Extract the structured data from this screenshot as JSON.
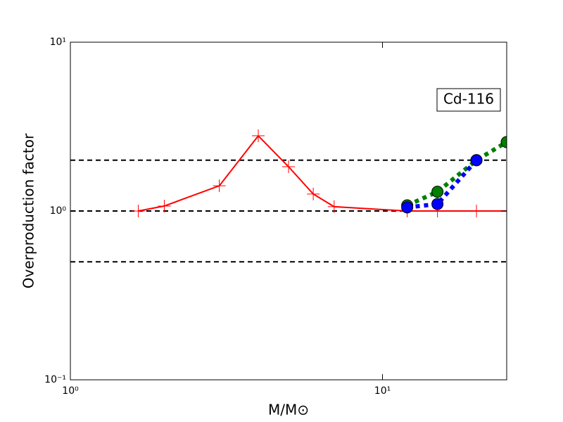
{
  "chart_data": {
    "type": "line",
    "annotation": "Cd-116",
    "xlabel": "M/M⊙",
    "ylabel": "Overproduction factor",
    "xscale": "log",
    "yscale": "log",
    "xlim": [
      1,
      25
    ],
    "ylim": [
      0.1,
      10
    ],
    "xticks": [
      {
        "value": 1,
        "label": "10⁰"
      },
      {
        "value": 10,
        "label": "10¹"
      }
    ],
    "yticks": [
      {
        "value": 0.1,
        "label": "10⁻¹"
      },
      {
        "value": 1,
        "label": "10⁰"
      },
      {
        "value": 10,
        "label": "10¹"
      }
    ],
    "reference_lines": [
      0.5,
      1,
      2
    ],
    "series": [
      {
        "color": "#ff0000",
        "style": "solid",
        "marker": "plus",
        "x": [
          1.65,
          2,
          3,
          4,
          5,
          6,
          7,
          12,
          15,
          20,
          25
        ],
        "values": [
          1.0,
          1.07,
          1.41,
          2.79,
          1.83,
          1.26,
          1.06,
          1.0,
          1.0,
          1.0,
          1.0
        ]
      },
      {
        "color": "#007f00",
        "style": "dotted",
        "marker": "circle",
        "x": [
          12,
          15,
          20,
          25
        ],
        "values": [
          1.08,
          1.3,
          2.0,
          2.56
        ]
      },
      {
        "color": "#0000ff",
        "style": "dotted",
        "marker": "circle",
        "x": [
          12,
          15,
          20
        ],
        "values": [
          1.05,
          1.1,
          2.0
        ]
      }
    ]
  }
}
